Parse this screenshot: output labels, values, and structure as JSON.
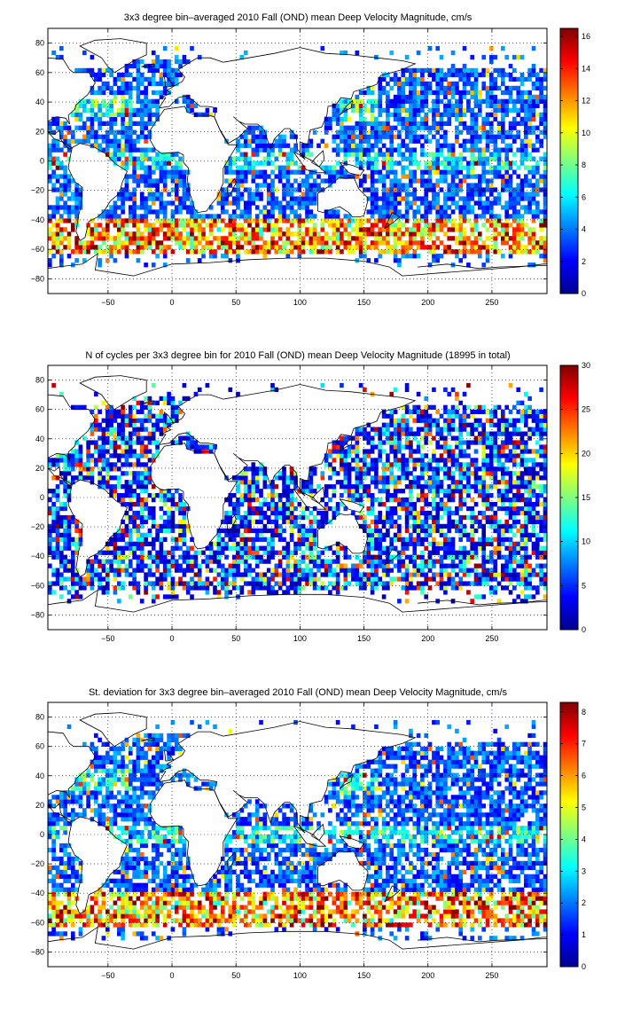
{
  "chart_data": [
    {
      "type": "heatmap",
      "title": "3x3 degree bin–averaged 2010 Fall (OND) mean Deep Velocity Magnitude, cm/s",
      "xlim": [
        -97,
        293
      ],
      "ylim": [
        -90,
        90
      ],
      "xticks": [
        -50,
        0,
        50,
        100,
        150,
        200,
        250
      ],
      "yticks": [
        -80,
        -60,
        -40,
        -20,
        0,
        20,
        40,
        60,
        80
      ],
      "xtick_labels": [
        "−50",
        "0",
        "50",
        "100",
        "150",
        "200",
        "250"
      ],
      "ytick_labels": [
        "−80",
        "−60",
        "−40",
        "−20",
        "0",
        "20",
        "40",
        "60",
        "80"
      ],
      "grid": true,
      "colormap": "jet",
      "colorbar": {
        "min": 0,
        "max": 16.5,
        "ticks": [
          0,
          2,
          4,
          6,
          8,
          10,
          12,
          14,
          16
        ],
        "tick_labels": [
          "0",
          "2",
          "4",
          "6",
          "8",
          "10",
          "12",
          "14",
          "16"
        ]
      },
      "bin_size_deg": 3,
      "field": "velocity"
    },
    {
      "type": "heatmap",
      "title": "N of cycles per 3x3 degree bin for 2010 Fall (OND) mean Deep Velocity Magnitude (18995 in total)",
      "xlim": [
        -97,
        293
      ],
      "ylim": [
        -90,
        90
      ],
      "xticks": [
        -50,
        0,
        50,
        100,
        150,
        200,
        250
      ],
      "yticks": [
        -80,
        -60,
        -40,
        -20,
        0,
        20,
        40,
        60,
        80
      ],
      "xtick_labels": [
        "−50",
        "0",
        "50",
        "100",
        "150",
        "200",
        "250"
      ],
      "ytick_labels": [
        "−80",
        "−60",
        "−40",
        "−20",
        "0",
        "20",
        "40",
        "60",
        "80"
      ],
      "grid": true,
      "colormap": "jet",
      "colorbar": {
        "min": 0,
        "max": 30,
        "ticks": [
          0,
          5,
          10,
          15,
          20,
          25,
          30
        ],
        "tick_labels": [
          "0",
          "5",
          "10",
          "15",
          "20",
          "25",
          "30"
        ]
      },
      "bin_size_deg": 3,
      "field": "count"
    },
    {
      "type": "heatmap",
      "title": "St. deviation for 3x3 degree bin–averaged 2010 Fall (OND) mean Deep Velocity Magnitude, cm/s",
      "xlim": [
        -97,
        293
      ],
      "ylim": [
        -90,
        90
      ],
      "xticks": [
        -50,
        0,
        50,
        100,
        150,
        200,
        250
      ],
      "yticks": [
        -80,
        -60,
        -40,
        -20,
        0,
        20,
        40,
        60,
        80
      ],
      "xtick_labels": [
        "−50",
        "0",
        "50",
        "100",
        "150",
        "200",
        "250"
      ],
      "ytick_labels": [
        "−80",
        "−60",
        "−40",
        "−20",
        "0",
        "20",
        "40",
        "60",
        "80"
      ],
      "grid": true,
      "colormap": "jet",
      "colorbar": {
        "min": 0,
        "max": 8.3,
        "ticks": [
          0,
          1,
          2,
          3,
          4,
          5,
          6,
          7,
          8
        ],
        "tick_labels": [
          "0",
          "1",
          "2",
          "3",
          "4",
          "5",
          "6",
          "7",
          "8"
        ]
      },
      "bin_size_deg": 3,
      "field": "stdev"
    }
  ]
}
